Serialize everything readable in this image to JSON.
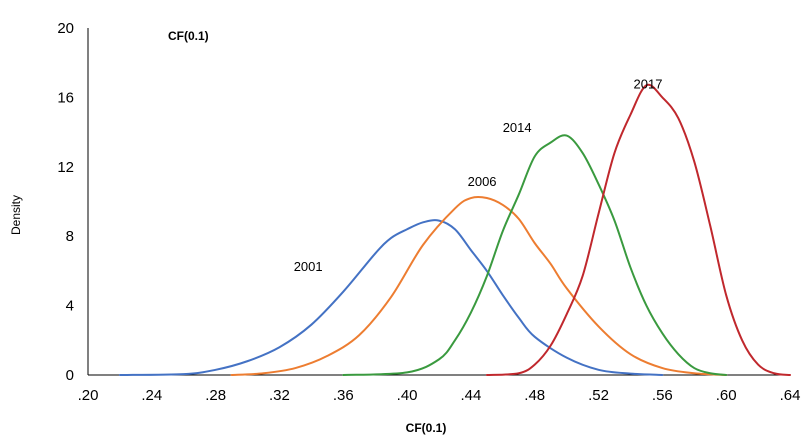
{
  "chart_data": {
    "type": "line",
    "title": "CF(0.1)",
    "xlabel": "CF(0.1)",
    "ylabel": "Density",
    "xlim": [
      0.2,
      0.64
    ],
    "ylim": [
      0,
      20
    ],
    "x_ticks": [
      ".20",
      ".24",
      ".28",
      ".32",
      ".36",
      ".40",
      ".44",
      ".48",
      ".52",
      ".56",
      ".60",
      ".64"
    ],
    "y_ticks": [
      "0",
      "4",
      "8",
      "12",
      "16",
      "20"
    ],
    "grid": false,
    "series": [
      {
        "name": "2001",
        "color": "#4472C4",
        "label_at": [
          0.338,
          6.0
        ],
        "points": [
          [
            0.22,
            0
          ],
          [
            0.26,
            0.05
          ],
          [
            0.28,
            0.3
          ],
          [
            0.3,
            0.8
          ],
          [
            0.32,
            1.6
          ],
          [
            0.34,
            2.9
          ],
          [
            0.36,
            4.8
          ],
          [
            0.38,
            7.0
          ],
          [
            0.39,
            7.9
          ],
          [
            0.4,
            8.4
          ],
          [
            0.41,
            8.8
          ],
          [
            0.42,
            8.9
          ],
          [
            0.43,
            8.4
          ],
          [
            0.44,
            7.2
          ],
          [
            0.45,
            6.0
          ],
          [
            0.46,
            4.6
          ],
          [
            0.47,
            3.3
          ],
          [
            0.48,
            2.2
          ],
          [
            0.5,
            1.0
          ],
          [
            0.52,
            0.3
          ],
          [
            0.54,
            0.08
          ],
          [
            0.56,
            0
          ]
        ]
      },
      {
        "name": "2006",
        "color": "#ED7D31",
        "label_at": [
          0.447,
          10.9
        ],
        "points": [
          [
            0.29,
            0
          ],
          [
            0.31,
            0.1
          ],
          [
            0.33,
            0.4
          ],
          [
            0.35,
            1.1
          ],
          [
            0.37,
            2.3
          ],
          [
            0.39,
            4.5
          ],
          [
            0.41,
            7.5
          ],
          [
            0.43,
            9.6
          ],
          [
            0.44,
            10.2
          ],
          [
            0.45,
            10.2
          ],
          [
            0.46,
            9.8
          ],
          [
            0.47,
            9.0
          ],
          [
            0.48,
            7.6
          ],
          [
            0.49,
            6.4
          ],
          [
            0.5,
            5.0
          ],
          [
            0.52,
            2.8
          ],
          [
            0.54,
            1.2
          ],
          [
            0.56,
            0.4
          ],
          [
            0.58,
            0.1
          ],
          [
            0.6,
            0
          ]
        ]
      },
      {
        "name": "2014",
        "color": "#3A9A3F",
        "label_at": [
          0.469,
          14.0
        ],
        "points": [
          [
            0.36,
            0
          ],
          [
            0.4,
            0.15
          ],
          [
            0.42,
            0.9
          ],
          [
            0.43,
            2.0
          ],
          [
            0.44,
            3.6
          ],
          [
            0.45,
            5.7
          ],
          [
            0.46,
            8.3
          ],
          [
            0.47,
            10.4
          ],
          [
            0.48,
            12.6
          ],
          [
            0.49,
            13.4
          ],
          [
            0.5,
            13.8
          ],
          [
            0.51,
            12.8
          ],
          [
            0.52,
            11.0
          ],
          [
            0.53,
            8.9
          ],
          [
            0.54,
            6.2
          ],
          [
            0.55,
            4.0
          ],
          [
            0.56,
            2.4
          ],
          [
            0.57,
            1.2
          ],
          [
            0.58,
            0.4
          ],
          [
            0.59,
            0.1
          ],
          [
            0.6,
            0
          ]
        ]
      },
      {
        "name": "2017",
        "color": "#C0282D",
        "label_at": [
          0.551,
          16.5
        ],
        "points": [
          [
            0.45,
            0
          ],
          [
            0.47,
            0.1
          ],
          [
            0.48,
            0.6
          ],
          [
            0.49,
            1.7
          ],
          [
            0.5,
            3.5
          ],
          [
            0.51,
            5.7
          ],
          [
            0.52,
            9.3
          ],
          [
            0.53,
            12.8
          ],
          [
            0.54,
            15.0
          ],
          [
            0.55,
            16.7
          ],
          [
            0.56,
            16.0
          ],
          [
            0.57,
            14.8
          ],
          [
            0.58,
            12.3
          ],
          [
            0.59,
            8.6
          ],
          [
            0.6,
            4.6
          ],
          [
            0.61,
            2.0
          ],
          [
            0.62,
            0.6
          ],
          [
            0.63,
            0.1
          ],
          [
            0.64,
            0
          ]
        ]
      }
    ]
  }
}
